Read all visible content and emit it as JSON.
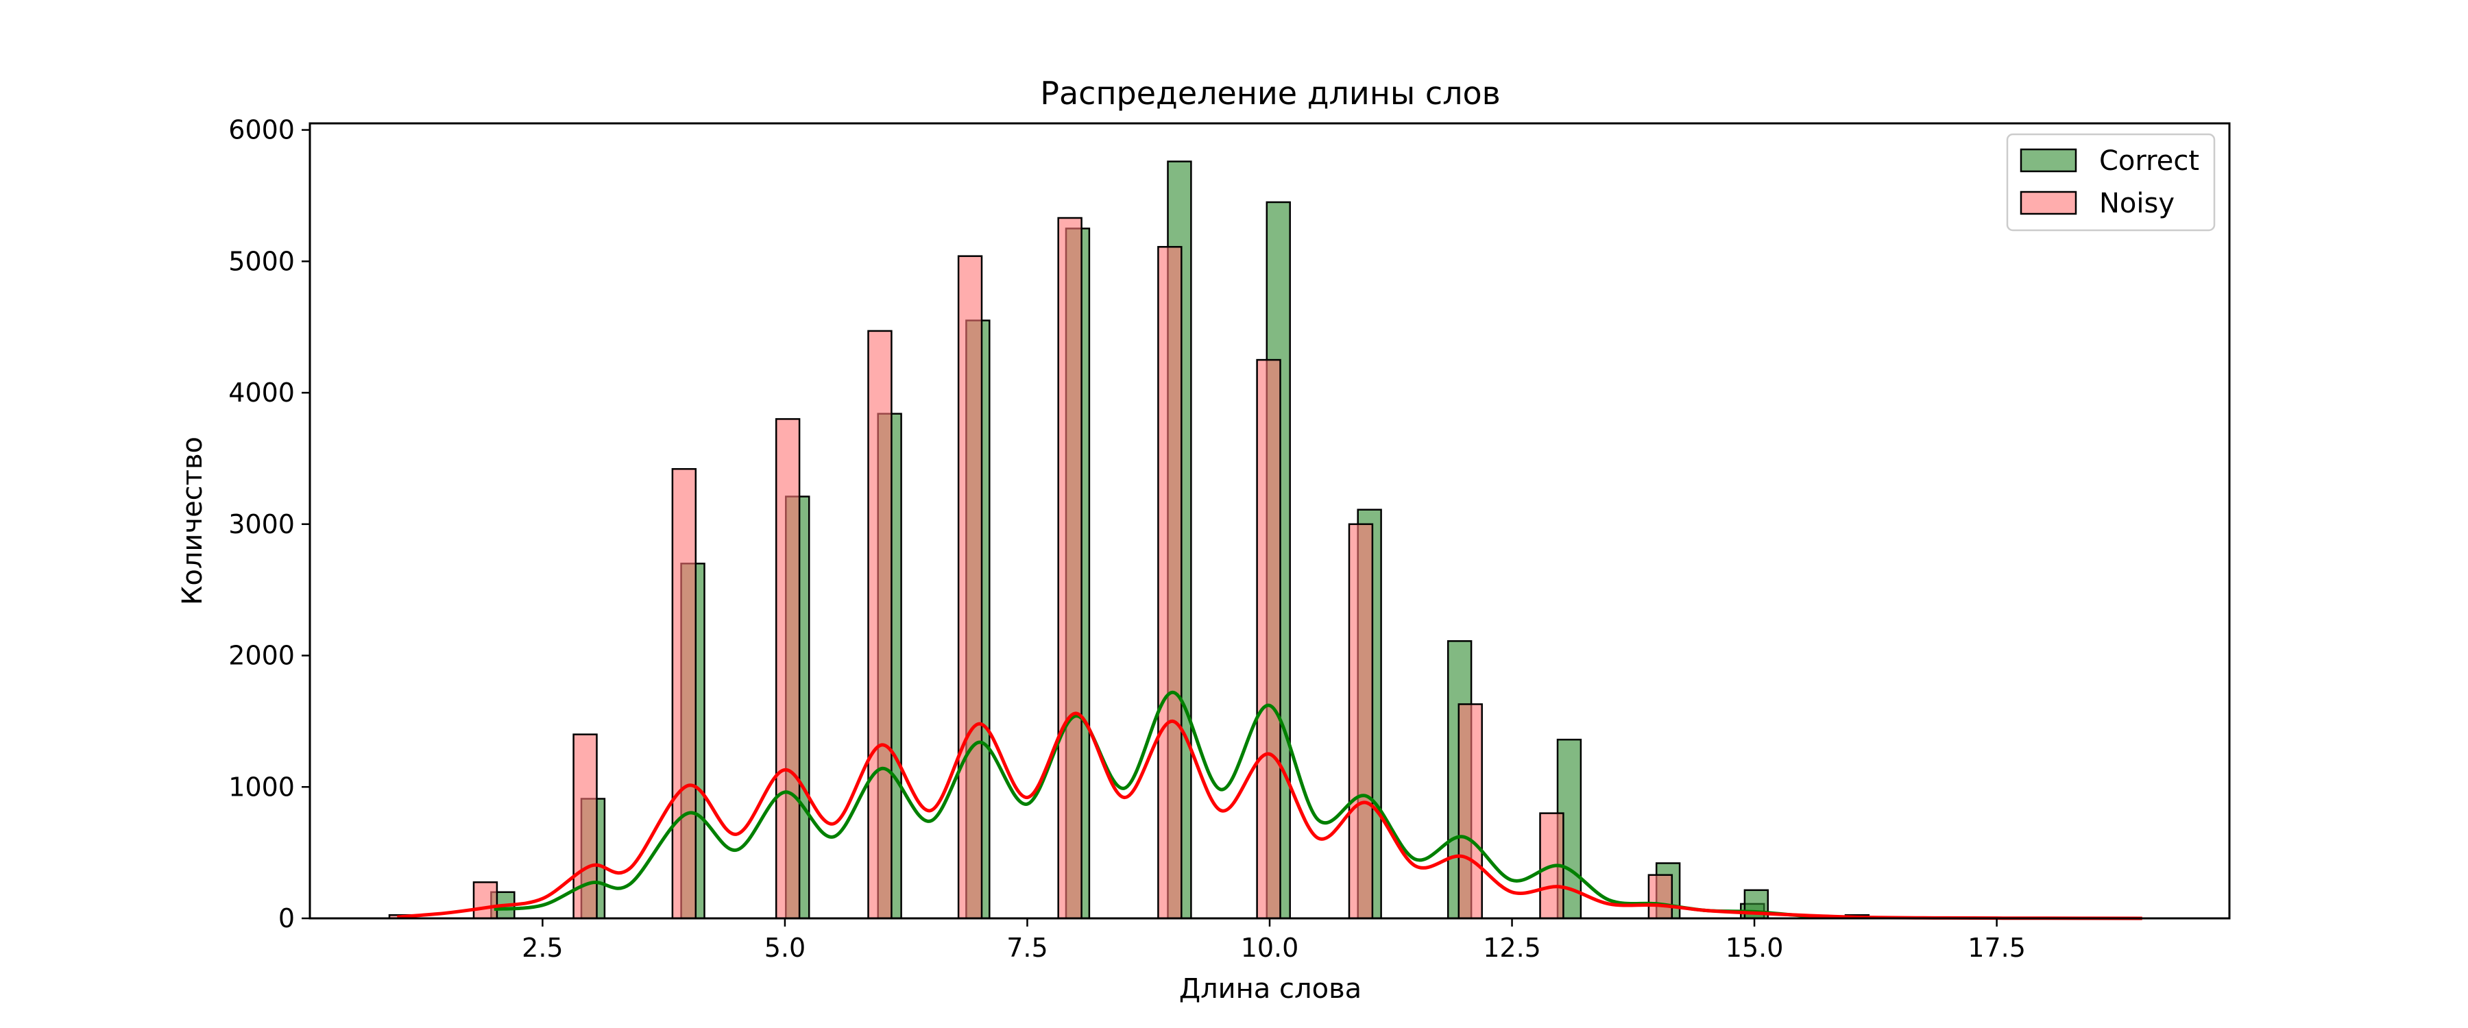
{
  "chart_data": {
    "type": "bar",
    "title": "Распределение длины слов",
    "xlabel": "Длина слова",
    "ylabel": "Количество",
    "xlim": [
      0.1,
      19.9
    ],
    "ylim": [
      0,
      6050
    ],
    "xticks": [
      2.5,
      5.0,
      7.5,
      10.0,
      12.5,
      15.0,
      17.5
    ],
    "xtick_labels": [
      "2.5",
      "5.0",
      "7.5",
      "10.0",
      "12.5",
      "15.0",
      "17.5"
    ],
    "yticks": [
      0,
      1000,
      2000,
      3000,
      4000,
      5000,
      6000
    ],
    "ytick_labels": [
      "0",
      "1000",
      "2000",
      "3000",
      "4000",
      "5000",
      "6000"
    ],
    "grid": false,
    "legend_position": "top-right",
    "bar_width": 0.24,
    "series": [
      {
        "name": "Correct",
        "color": "#2e8b2e",
        "kde_color": "#008000",
        "bars": [
          {
            "x": 2.09,
            "value": 200
          },
          {
            "x": 3.02,
            "value": 910
          },
          {
            "x": 4.05,
            "value": 2700
          },
          {
            "x": 5.13,
            "value": 3210
          },
          {
            "x": 6.08,
            "value": 3840
          },
          {
            "x": 6.99,
            "value": 4550
          },
          {
            "x": 8.02,
            "value": 5250
          },
          {
            "x": 9.07,
            "value": 5760
          },
          {
            "x": 10.09,
            "value": 5450
          },
          {
            "x": 11.03,
            "value": 3110
          },
          {
            "x": 11.96,
            "value": 2110
          },
          {
            "x": 13.09,
            "value": 1360
          },
          {
            "x": 14.11,
            "value": 420
          },
          {
            "x": 14.98,
            "value": 110
          },
          {
            "x": 15.02,
            "value": 215
          }
        ],
        "kde": [
          [
            2.0,
            70
          ],
          [
            2.5,
            100
          ],
          [
            3.0,
            270
          ],
          [
            3.4,
            260
          ],
          [
            4.0,
            800
          ],
          [
            4.5,
            520
          ],
          [
            5.0,
            960
          ],
          [
            5.5,
            620
          ],
          [
            6.0,
            1140
          ],
          [
            6.5,
            740
          ],
          [
            7.0,
            1340
          ],
          [
            7.5,
            870
          ],
          [
            8.0,
            1540
          ],
          [
            8.5,
            990
          ],
          [
            9.0,
            1720
          ],
          [
            9.5,
            980
          ],
          [
            10.0,
            1620
          ],
          [
            10.5,
            750
          ],
          [
            11.0,
            930
          ],
          [
            11.5,
            450
          ],
          [
            12.0,
            620
          ],
          [
            12.5,
            290
          ],
          [
            13.0,
            400
          ],
          [
            13.5,
            140
          ],
          [
            14.0,
            110
          ],
          [
            14.5,
            60
          ],
          [
            15.0,
            50
          ],
          [
            15.5,
            20
          ],
          [
            16.0,
            5
          ]
        ]
      },
      {
        "name": "Noisy",
        "color": "#ff7777",
        "kde_color": "#ff0000",
        "bars": [
          {
            "x": 1.04,
            "value": 25
          },
          {
            "x": 1.91,
            "value": 275
          },
          {
            "x": 2.94,
            "value": 1400
          },
          {
            "x": 3.96,
            "value": 3420
          },
          {
            "x": 5.03,
            "value": 3800
          },
          {
            "x": 5.98,
            "value": 4470
          },
          {
            "x": 6.91,
            "value": 5040
          },
          {
            "x": 7.94,
            "value": 5330
          },
          {
            "x": 8.97,
            "value": 5110
          },
          {
            "x": 9.99,
            "value": 4250
          },
          {
            "x": 10.94,
            "value": 3000
          },
          {
            "x": 12.07,
            "value": 1630
          },
          {
            "x": 12.91,
            "value": 800
          },
          {
            "x": 14.03,
            "value": 330
          },
          {
            "x": 16.06,
            "value": 25
          }
        ],
        "kde": [
          [
            1.0,
            10
          ],
          [
            1.5,
            40
          ],
          [
            2.0,
            90
          ],
          [
            2.5,
            150
          ],
          [
            3.0,
            400
          ],
          [
            3.4,
            380
          ],
          [
            4.0,
            1010
          ],
          [
            4.5,
            640
          ],
          [
            5.0,
            1130
          ],
          [
            5.5,
            720
          ],
          [
            6.0,
            1320
          ],
          [
            6.5,
            820
          ],
          [
            7.0,
            1480
          ],
          [
            7.5,
            920
          ],
          [
            8.0,
            1560
          ],
          [
            8.5,
            920
          ],
          [
            9.0,
            1500
          ],
          [
            9.5,
            820
          ],
          [
            10.0,
            1250
          ],
          [
            10.5,
            610
          ],
          [
            11.0,
            880
          ],
          [
            11.5,
            400
          ],
          [
            12.0,
            470
          ],
          [
            12.5,
            200
          ],
          [
            13.0,
            240
          ],
          [
            13.5,
            110
          ],
          [
            14.0,
            100
          ],
          [
            14.5,
            60
          ],
          [
            15.0,
            40
          ],
          [
            16.0,
            10
          ],
          [
            17.0,
            3
          ],
          [
            18.0,
            1
          ],
          [
            19.0,
            0
          ]
        ]
      }
    ]
  }
}
